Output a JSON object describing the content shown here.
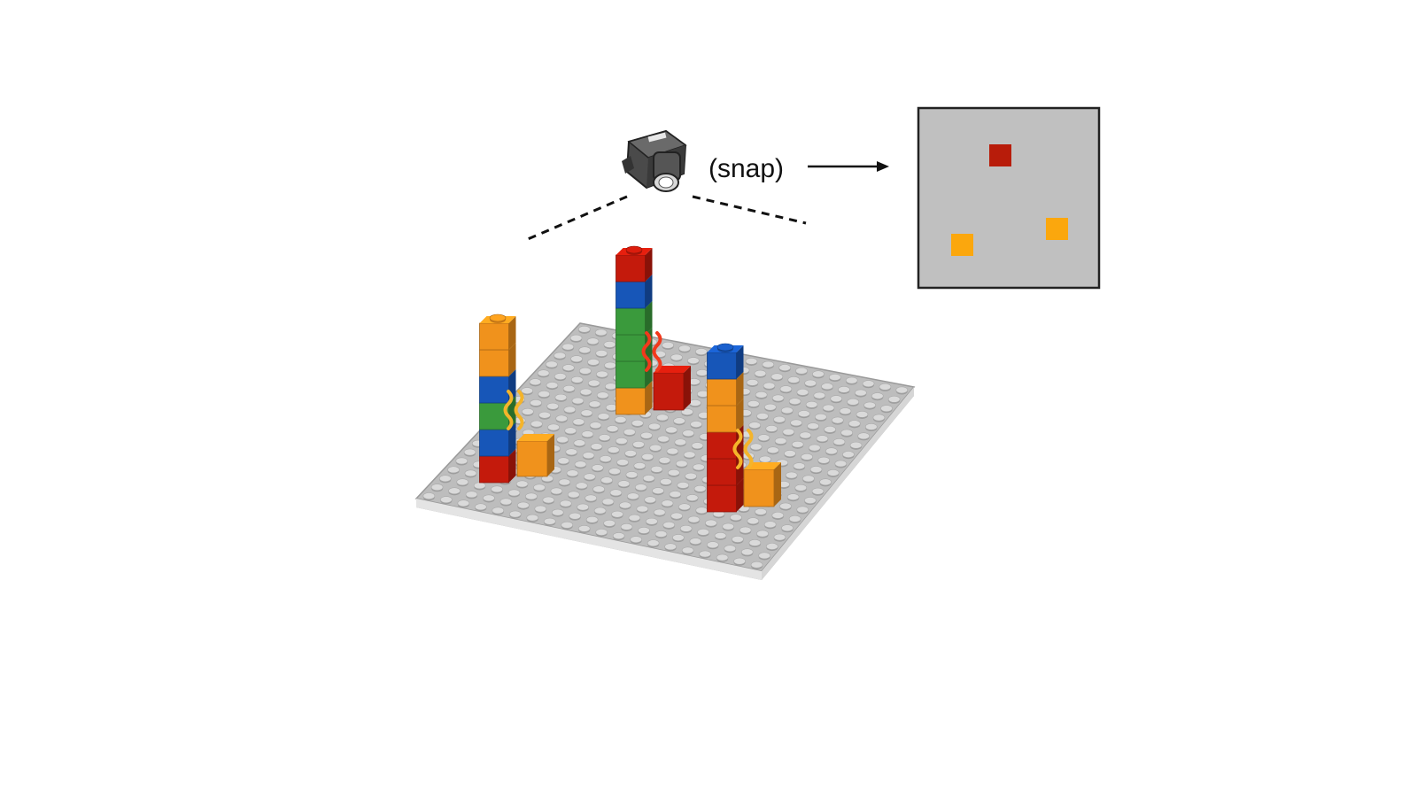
{
  "diagram": {
    "snap_label": "(snap)"
  },
  "icons": {
    "camera": "camera-icon",
    "arrow": "arrow-right-icon"
  },
  "colors": {
    "red": "#c41a0c",
    "orange": "#f0921c",
    "green": "#3a9a3c",
    "blue": "#1756b8",
    "baseplate": "#bdbdbd",
    "snapshot_background": "#c0c0c0",
    "snapshot_red": "#b81c0a",
    "snapshot_orange": "#fba70d",
    "heat_red": "#f2391c",
    "heat_yellow": "#f5b42a"
  },
  "scene": {
    "towers": [
      {
        "name": "left",
        "bricks_bottom_to_top": [
          "red",
          "blue",
          "green",
          "blue",
          "orange",
          "orange"
        ],
        "side_brick": "orange",
        "heat": "yellow"
      },
      {
        "name": "middle",
        "bricks_bottom_to_top": [
          "orange",
          "green",
          "green",
          "green",
          "blue",
          "red"
        ],
        "side_brick": "red",
        "heat": "red"
      },
      {
        "name": "right",
        "bricks_bottom_to_top": [
          "red",
          "red",
          "red",
          "orange",
          "orange",
          "blue"
        ],
        "side_brick": "orange",
        "heat": "yellow"
      }
    ]
  },
  "snapshot": {
    "markers": [
      {
        "color": "snapshot_red"
      },
      {
        "color": "snapshot_orange"
      },
      {
        "color": "snapshot_orange"
      }
    ]
  }
}
